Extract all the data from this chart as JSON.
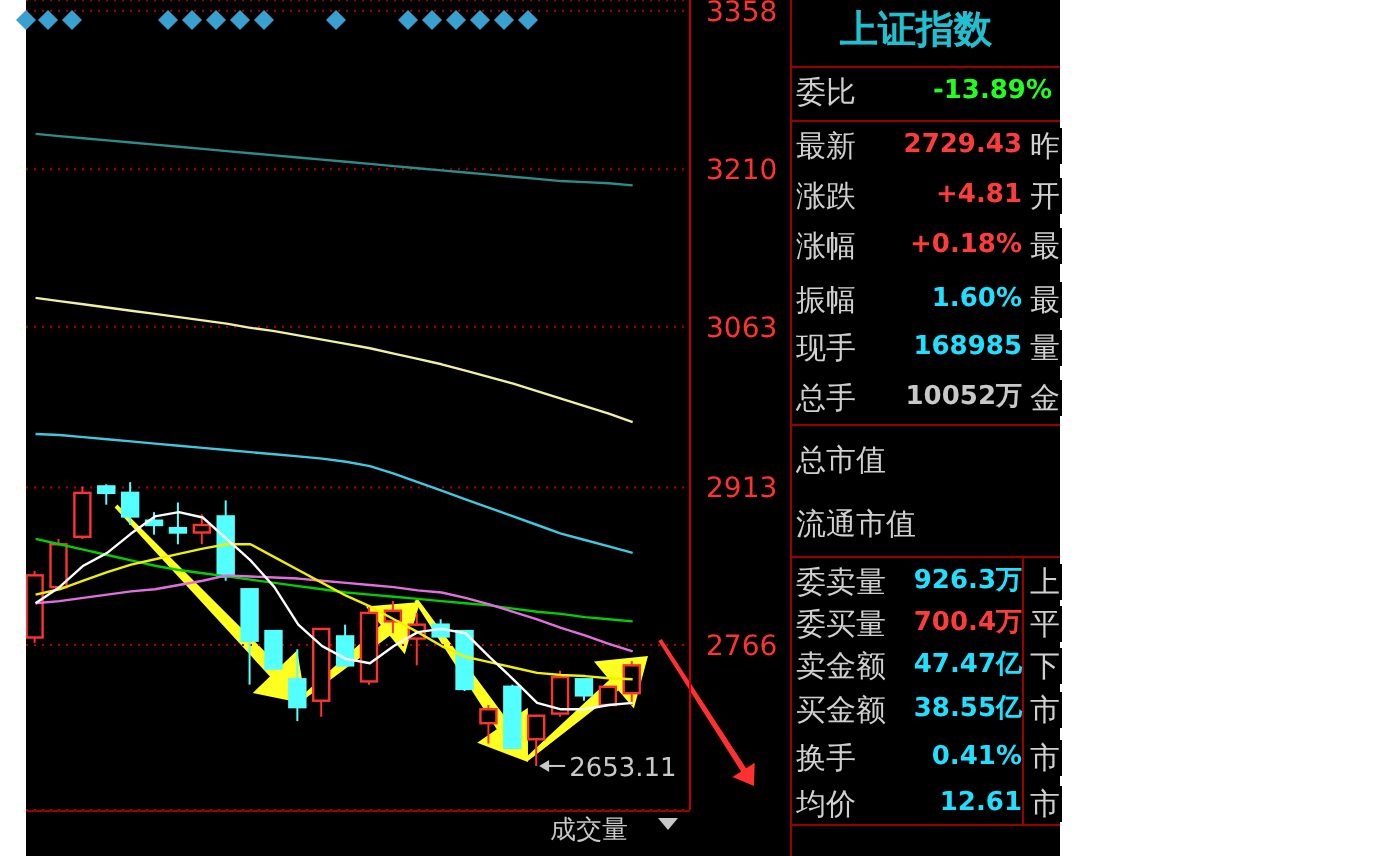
{
  "chart_data": [
    {
      "type": "candlestick",
      "categories": [
        null,
        null,
        null,
        null,
        null,
        null,
        null,
        null,
        null,
        null,
        null,
        null,
        null,
        null,
        null,
        null,
        null,
        null,
        null,
        null,
        null,
        null,
        null,
        null,
        null,
        null
      ],
      "ohlc": [
        [
          2773,
          2835,
          2768,
          2831
        ],
        [
          2820,
          2865,
          2818,
          2860
        ],
        [
          2867,
          2914,
          2865,
          2908
        ],
        [
          2914,
          2916,
          2897,
          2908
        ],
        [
          2908,
          2918,
          2878,
          2886
        ],
        [
          2882,
          2890,
          2869,
          2878
        ],
        [
          2875,
          2899,
          2860,
          2871
        ],
        [
          2871,
          2888,
          2860,
          2878
        ],
        [
          2886,
          2901,
          2826,
          2830
        ],
        [
          2818,
          2818,
          2729,
          2770
        ],
        [
          2779,
          2779,
          2744,
          2744
        ],
        [
          2734,
          2762,
          2695,
          2708
        ],
        [
          2714,
          2781,
          2699,
          2781
        ],
        [
          2774,
          2785,
          2747,
          2747
        ],
        [
          2732,
          2803,
          2729,
          2796
        ],
        [
          2788,
          2807,
          2777,
          2798
        ],
        [
          2772,
          2796,
          2747,
          2785
        ],
        [
          2785,
          2790,
          2774,
          2774
        ],
        [
          2779,
          2779,
          2723,
          2725
        ],
        [
          2693,
          2710,
          2674,
          2706
        ],
        [
          2727,
          2729,
          2670,
          2670
        ],
        [
          2678,
          2700,
          2653.11,
          2700
        ],
        [
          2702,
          2742,
          2699,
          2736
        ],
        [
          2734,
          2734,
          2714,
          2719
        ],
        [
          2710,
          2727,
          2710,
          2727
        ],
        [
          2721,
          2751,
          2710,
          2747
        ]
      ],
      "colors": [
        "#ff3232",
        "#ff3232",
        "#ff3232",
        "#54ffff",
        "#54ffff",
        "#54ffff",
        "#54ffff",
        "#ff3232",
        "#54ffff",
        "#54ffff",
        "#54ffff",
        "#54ffff",
        "#ff3232",
        "#54ffff",
        "#ff3232",
        "#ff3232",
        "#ff3232",
        "#54ffff",
        "#54ffff",
        "#ff3232",
        "#54ffff",
        "#ff3232",
        "#ff3232",
        "#54ffff",
        "#ff3232",
        "#ff3232"
      ],
      "series": [
        {
          "type": "line",
          "color": "#2e8b8b",
          "values": [
            3243,
            3241,
            3239,
            3237,
            3235,
            3233,
            3231,
            3229,
            3227,
            3225,
            3223,
            3221,
            3219,
            3217,
            3215,
            3213,
            3211,
            3209,
            3207,
            3205,
            3203,
            3201,
            3199,
            3198,
            3197,
            3195
          ]
        },
        {
          "type": "line",
          "color": "#f0f0a0",
          "values": [
            3090,
            3087,
            3084,
            3081,
            3078,
            3075,
            3072,
            3069,
            3066,
            3062,
            3059,
            3055,
            3051,
            3047,
            3043,
            3038,
            3033,
            3028,
            3022,
            3016,
            3010,
            3003,
            2996,
            2989,
            2982,
            2974
          ]
        },
        {
          "type": "line",
          "color": "#40c8e0",
          "values": [
            2963,
            2962,
            2960,
            2958,
            2956,
            2954,
            2952,
            2950,
            2948,
            2946,
            2944,
            2942,
            2940,
            2937,
            2933,
            2926,
            2918,
            2910,
            2902,
            2894,
            2886,
            2878,
            2870,
            2864,
            2858,
            2852
          ]
        },
        {
          "type": "line",
          "color": "#00d000",
          "values": [
            2865,
            2860,
            2855,
            2850,
            2845,
            2840,
            2836,
            2833,
            2830,
            2827,
            2824,
            2821,
            2818,
            2815,
            2813,
            2811,
            2809,
            2807,
            2805,
            2803,
            2800,
            2797,
            2795,
            2792,
            2790,
            2788
          ]
        },
        {
          "type": "line",
          "color": "#e070e0",
          "values": [
            2805,
            2807,
            2810,
            2813,
            2816,
            2818,
            2822,
            2826,
            2831,
            2830,
            2829,
            2828,
            2826,
            2824,
            2822,
            2820,
            2817,
            2815,
            2810,
            2804,
            2797,
            2790,
            2782,
            2775,
            2767,
            2760
          ]
        },
        {
          "type": "line",
          "color": "#f0f000",
          "values": [
            2813,
            2818,
            2826,
            2834,
            2841,
            2846,
            2851,
            2856,
            2860,
            2860,
            2848,
            2836,
            2824,
            2812,
            2802,
            2790,
            2778,
            2765,
            2755,
            2750,
            2745,
            2740,
            2738,
            2737,
            2735,
            2734
          ]
        },
        {
          "type": "line",
          "color": "#ffffff",
          "values": [
            2805,
            2820,
            2840,
            2852,
            2870,
            2886,
            2890,
            2885,
            2865,
            2845,
            2820,
            2785,
            2765,
            2753,
            2749,
            2765,
            2778,
            2781,
            2777,
            2755,
            2734,
            2712,
            2706,
            2706,
            2710,
            2712
          ]
        }
      ],
      "ylim": [
        2612,
        3368
      ],
      "yticks": [
        3358,
        3210,
        3063,
        2913,
        2766
      ],
      "grid": "y",
      "tick_labels": "y",
      "annotations": [
        "2653.11",
        "成交量"
      ]
    },
    {
      "type": "other",
      "title": "上证指数",
      "annotations": [
        "委比",
        "-13.89%",
        "最新",
        "2729.43",
        "昨",
        "涨跌",
        "+4.81",
        "开",
        "涨幅",
        "+0.18%",
        "最",
        "振幅",
        "1.60%",
        "最",
        "现手",
        "168985",
        "量",
        "总手",
        "10052万",
        "金",
        "总市值",
        "流通市值",
        "委卖量",
        "926.3万",
        "上",
        "委买量",
        "700.4万",
        "平",
        "卖金额",
        "47.47亿",
        "下",
        "买金额",
        "38.55亿",
        "市",
        "换手",
        "0.41%",
        "市",
        "均价",
        "12.61",
        "市"
      ]
    }
  ]
}
